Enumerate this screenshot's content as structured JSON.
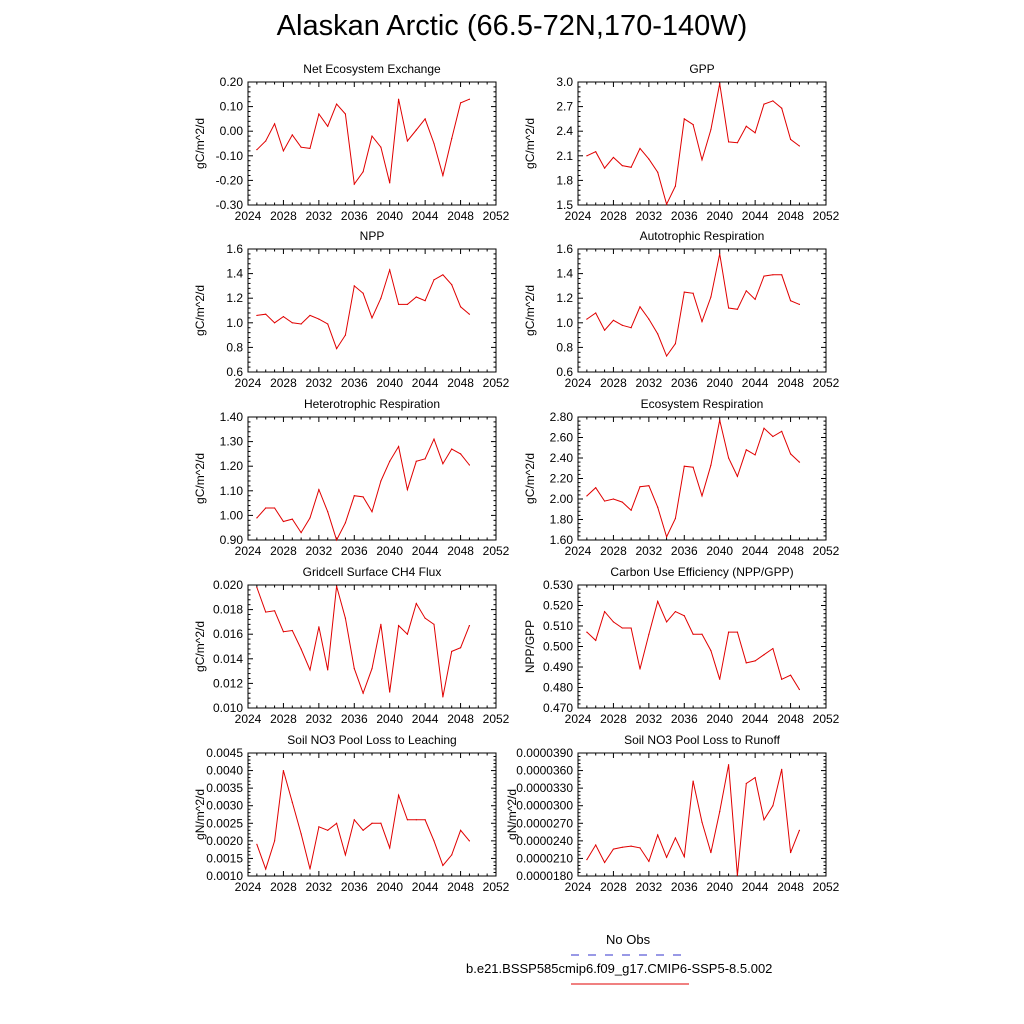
{
  "title": "Alaskan Arctic (66.5-72N,170-140W)",
  "legend": {
    "items": [
      {
        "label": "No Obs",
        "color": "#3333cc",
        "style": "dashed"
      },
      {
        "label": "b.e21.BSSP585cmip6.f09_g17.CMIP6-SSP5-8.5.002",
        "color": "#e00000",
        "style": "solid"
      }
    ]
  },
  "chart_data": [
    {
      "type": "line",
      "title": "Net Ecosystem Exchange",
      "ylabel": "gC/m^2/d",
      "xlim": [
        2024,
        2052
      ],
      "xticks": [
        "2024",
        "2028",
        "2032",
        "2036",
        "2040",
        "2044",
        "2048",
        "2052"
      ],
      "ylim": [
        -0.3,
        0.2
      ],
      "yticks": [
        "-0.30",
        "-0.20",
        "-0.10",
        "0.00",
        "0.10",
        "0.20"
      ],
      "x": [
        2025,
        2026,
        2027,
        2028,
        2029,
        2030,
        2031,
        2032,
        2033,
        2034,
        2035,
        2036,
        2037,
        2038,
        2039,
        2040,
        2041,
        2042,
        2043,
        2044,
        2045,
        2046,
        2047,
        2048,
        2049
      ],
      "series": [
        {
          "color": "#e00000",
          "values": [
            -0.075,
            -0.04,
            0.03,
            -0.08,
            -0.015,
            -0.065,
            -0.07,
            0.07,
            0.02,
            0.11,
            0.07,
            -0.215,
            -0.165,
            -0.02,
            -0.065,
            -0.21,
            0.13,
            -0.04,
            0.005,
            0.05,
            -0.05,
            -0.18,
            -0.03,
            0.115,
            0.13
          ]
        }
      ]
    },
    {
      "type": "line",
      "title": "GPP",
      "ylabel": "gC/m^2/d",
      "xlim": [
        2024,
        2052
      ],
      "xticks": [
        "2024",
        "2028",
        "2032",
        "2036",
        "2040",
        "2044",
        "2048",
        "2052"
      ],
      "ylim": [
        1.5,
        3.0
      ],
      "yticks": [
        "1.5",
        "1.8",
        "2.1",
        "2.4",
        "2.7",
        "3.0"
      ],
      "x": [
        2025,
        2026,
        2027,
        2028,
        2029,
        2030,
        2031,
        2032,
        2033,
        2034,
        2035,
        2036,
        2037,
        2038,
        2039,
        2040,
        2041,
        2042,
        2043,
        2044,
        2045,
        2046,
        2047,
        2048,
        2049
      ],
      "series": [
        {
          "color": "#e00000",
          "values": [
            2.1,
            2.15,
            1.95,
            2.08,
            1.98,
            1.96,
            2.19,
            2.06,
            1.9,
            1.51,
            1.73,
            2.55,
            2.48,
            2.05,
            2.42,
            2.98,
            2.27,
            2.26,
            2.46,
            2.38,
            2.73,
            2.77,
            2.68,
            2.3,
            2.22
          ]
        }
      ]
    },
    {
      "type": "line",
      "title": "NPP",
      "ylabel": "gC/m^2/d",
      "xlim": [
        2024,
        2052
      ],
      "xticks": [
        "2024",
        "2028",
        "2032",
        "2036",
        "2040",
        "2044",
        "2048",
        "2052"
      ],
      "ylim": [
        0.6,
        1.6
      ],
      "yticks": [
        "0.6",
        "0.8",
        "1.0",
        "1.2",
        "1.4",
        "1.6"
      ],
      "x": [
        2025,
        2026,
        2027,
        2028,
        2029,
        2030,
        2031,
        2032,
        2033,
        2034,
        2035,
        2036,
        2037,
        2038,
        2039,
        2040,
        2041,
        2042,
        2043,
        2044,
        2045,
        2046,
        2047,
        2048,
        2049
      ],
      "series": [
        {
          "color": "#e00000",
          "values": [
            1.06,
            1.07,
            1.0,
            1.05,
            1.0,
            0.99,
            1.06,
            1.03,
            0.99,
            0.79,
            0.9,
            1.3,
            1.24,
            1.04,
            1.2,
            1.43,
            1.15,
            1.15,
            1.21,
            1.18,
            1.35,
            1.39,
            1.31,
            1.13,
            1.07
          ]
        }
      ]
    },
    {
      "type": "line",
      "title": "Autotrophic Respiration",
      "ylabel": "gC/m^2/d",
      "xlim": [
        2024,
        2052
      ],
      "xticks": [
        "2024",
        "2028",
        "2032",
        "2036",
        "2040",
        "2044",
        "2048",
        "2052"
      ],
      "ylim": [
        0.6,
        1.6
      ],
      "yticks": [
        "0.6",
        "0.8",
        "1.0",
        "1.2",
        "1.4",
        "1.6"
      ],
      "x": [
        2025,
        2026,
        2027,
        2028,
        2029,
        2030,
        2031,
        2032,
        2033,
        2034,
        2035,
        2036,
        2037,
        2038,
        2039,
        2040,
        2041,
        2042,
        2043,
        2044,
        2045,
        2046,
        2047,
        2048,
        2049
      ],
      "series": [
        {
          "color": "#e00000",
          "values": [
            1.03,
            1.08,
            0.94,
            1.02,
            0.98,
            0.96,
            1.13,
            1.03,
            0.91,
            0.73,
            0.83,
            1.25,
            1.24,
            1.01,
            1.21,
            1.56,
            1.12,
            1.11,
            1.26,
            1.19,
            1.38,
            1.39,
            1.39,
            1.18,
            1.15
          ]
        }
      ]
    },
    {
      "type": "line",
      "title": "Heterotrophic Respiration",
      "ylabel": "gC/m^2/d",
      "xlim": [
        2024,
        2052
      ],
      "xticks": [
        "2024",
        "2028",
        "2032",
        "2036",
        "2040",
        "2044",
        "2048",
        "2052"
      ],
      "ylim": [
        0.9,
        1.4
      ],
      "yticks": [
        "0.90",
        "1.00",
        "1.10",
        "1.20",
        "1.30",
        "1.40"
      ],
      "x": [
        2025,
        2026,
        2027,
        2028,
        2029,
        2030,
        2031,
        2032,
        2033,
        2034,
        2035,
        2036,
        2037,
        2038,
        2039,
        2040,
        2041,
        2042,
        2043,
        2044,
        2045,
        2046,
        2047,
        2048,
        2049
      ],
      "series": [
        {
          "color": "#e00000",
          "values": [
            0.99,
            1.03,
            1.03,
            0.975,
            0.985,
            0.93,
            0.99,
            1.105,
            1.015,
            0.9,
            0.97,
            1.08,
            1.075,
            1.015,
            1.14,
            1.22,
            1.28,
            1.105,
            1.22,
            1.23,
            1.31,
            1.21,
            1.27,
            1.25,
            1.205
          ]
        }
      ]
    },
    {
      "type": "line",
      "title": "Ecosystem Respiration",
      "ylabel": "gC/m^2/d",
      "xlim": [
        2024,
        2052
      ],
      "xticks": [
        "2024",
        "2028",
        "2032",
        "2036",
        "2040",
        "2044",
        "2048",
        "2052"
      ],
      "ylim": [
        1.6,
        2.8
      ],
      "yticks": [
        "1.60",
        "1.80",
        "2.00",
        "2.20",
        "2.40",
        "2.60",
        "2.80"
      ],
      "x": [
        2025,
        2026,
        2027,
        2028,
        2029,
        2030,
        2031,
        2032,
        2033,
        2034,
        2035,
        2036,
        2037,
        2038,
        2039,
        2040,
        2041,
        2042,
        2043,
        2044,
        2045,
        2046,
        2047,
        2048,
        2049
      ],
      "series": [
        {
          "color": "#e00000",
          "values": [
            2.03,
            2.11,
            1.98,
            2.0,
            1.97,
            1.89,
            2.12,
            2.13,
            1.92,
            1.63,
            1.81,
            2.32,
            2.31,
            2.03,
            2.33,
            2.77,
            2.4,
            2.22,
            2.48,
            2.43,
            2.69,
            2.61,
            2.66,
            2.44,
            2.36
          ]
        }
      ]
    },
    {
      "type": "line",
      "title": "Gridcell Surface CH4 Flux",
      "ylabel": "gC/m^2/d",
      "xlim": [
        2024,
        2052
      ],
      "xticks": [
        "2024",
        "2028",
        "2032",
        "2036",
        "2040",
        "2044",
        "2048",
        "2052"
      ],
      "ylim": [
        0.01,
        0.02
      ],
      "yticks": [
        "0.010",
        "0.012",
        "0.014",
        "0.016",
        "0.018",
        "0.020"
      ],
      "x": [
        2025,
        2026,
        2027,
        2028,
        2029,
        2030,
        2031,
        2032,
        2033,
        2034,
        2035,
        2036,
        2037,
        2038,
        2039,
        2040,
        2041,
        2042,
        2043,
        2044,
        2045,
        2046,
        2047,
        2048,
        2049
      ],
      "series": [
        {
          "color": "#e00000",
          "values": [
            0.0198,
            0.0178,
            0.0179,
            0.0162,
            0.0163,
            0.0148,
            0.0131,
            0.0166,
            0.0131,
            0.0199,
            0.0173,
            0.0132,
            0.0112,
            0.0132,
            0.0168,
            0.0113,
            0.0167,
            0.016,
            0.0185,
            0.0173,
            0.0168,
            0.0109,
            0.0146,
            0.0149,
            0.0167
          ]
        }
      ]
    },
    {
      "type": "line",
      "title": "Carbon Use Efficiency (NPP/GPP)",
      "ylabel": "NPP/GPP",
      "xlim": [
        2024,
        2052
      ],
      "xticks": [
        "2024",
        "2028",
        "2032",
        "2036",
        "2040",
        "2044",
        "2048",
        "2052"
      ],
      "ylim": [
        0.47,
        0.53
      ],
      "yticks": [
        "0.470",
        "0.480",
        "0.490",
        "0.500",
        "0.510",
        "0.520",
        "0.530"
      ],
      "x": [
        2025,
        2026,
        2027,
        2028,
        2029,
        2030,
        2031,
        2032,
        2033,
        2034,
        2035,
        2036,
        2037,
        2038,
        2039,
        2040,
        2041,
        2042,
        2043,
        2044,
        2045,
        2046,
        2047,
        2048,
        2049
      ],
      "series": [
        {
          "color": "#e00000",
          "values": [
            0.507,
            0.503,
            0.517,
            0.512,
            0.509,
            0.509,
            0.489,
            0.506,
            0.522,
            0.512,
            0.517,
            0.515,
            0.506,
            0.506,
            0.498,
            0.484,
            0.507,
            0.507,
            0.492,
            0.493,
            0.496,
            0.499,
            0.484,
            0.486,
            0.479
          ]
        }
      ]
    },
    {
      "type": "line",
      "title": "Soil NO3 Pool Loss to Leaching",
      "ylabel": "gN/m^2/d",
      "xlim": [
        2024,
        2052
      ],
      "xticks": [
        "2024",
        "2028",
        "2032",
        "2036",
        "2040",
        "2044",
        "2048",
        "2052"
      ],
      "ylim": [
        0.001,
        0.0045
      ],
      "yticks": [
        "0.0010",
        "0.0015",
        "0.0020",
        "0.0025",
        "0.0030",
        "0.0035",
        "0.0040",
        "0.0045"
      ],
      "x": [
        2025,
        2026,
        2027,
        2028,
        2029,
        2030,
        2031,
        2032,
        2033,
        2034,
        2035,
        2036,
        2037,
        2038,
        2039,
        2040,
        2041,
        2042,
        2043,
        2044,
        2045,
        2046,
        2047,
        2048,
        2049
      ],
      "series": [
        {
          "color": "#e00000",
          "values": [
            0.0019,
            0.0012,
            0.002,
            0.004,
            0.0031,
            0.0022,
            0.0012,
            0.0024,
            0.0023,
            0.0025,
            0.0016,
            0.0026,
            0.0023,
            0.0025,
            0.0025,
            0.0018,
            0.0033,
            0.0026,
            0.0026,
            0.0026,
            0.002,
            0.0013,
            0.0016,
            0.0023,
            0.002
          ]
        }
      ]
    },
    {
      "type": "line",
      "title": "Soil NO3 Pool Loss to Runoff",
      "ylabel": "gN/m^2/d",
      "xlim": [
        2024,
        2052
      ],
      "xticks": [
        "2024",
        "2028",
        "2032",
        "2036",
        "2040",
        "2044",
        "2048",
        "2052"
      ],
      "ylim": [
        1.8e-05,
        3.9e-05
      ],
      "yticks": [
        "0.0000180",
        "0.0000210",
        "0.0000240",
        "0.0000270",
        "0.0000300",
        "0.0000330",
        "0.0000360",
        "0.0000390"
      ],
      "x": [
        2025,
        2026,
        2027,
        2028,
        2029,
        2030,
        2031,
        2032,
        2033,
        2034,
        2035,
        2036,
        2037,
        2038,
        2039,
        2040,
        2041,
        2042,
        2043,
        2044,
        2045,
        2046,
        2047,
        2048,
        2049
      ],
      "series": [
        {
          "color": "#e00000",
          "values": [
            2.08e-05,
            2.33e-05,
            2.03e-05,
            2.26e-05,
            2.29e-05,
            2.31e-05,
            2.28e-05,
            2.05e-05,
            2.5e-05,
            2.12e-05,
            2.45e-05,
            2.13e-05,
            3.42e-05,
            2.72e-05,
            2.2e-05,
            2.9e-05,
            3.7e-05,
            1.81e-05,
            3.38e-05,
            3.48e-05,
            2.76e-05,
            3e-05,
            3.62e-05,
            2.2e-05,
            2.58e-05
          ]
        }
      ]
    }
  ]
}
